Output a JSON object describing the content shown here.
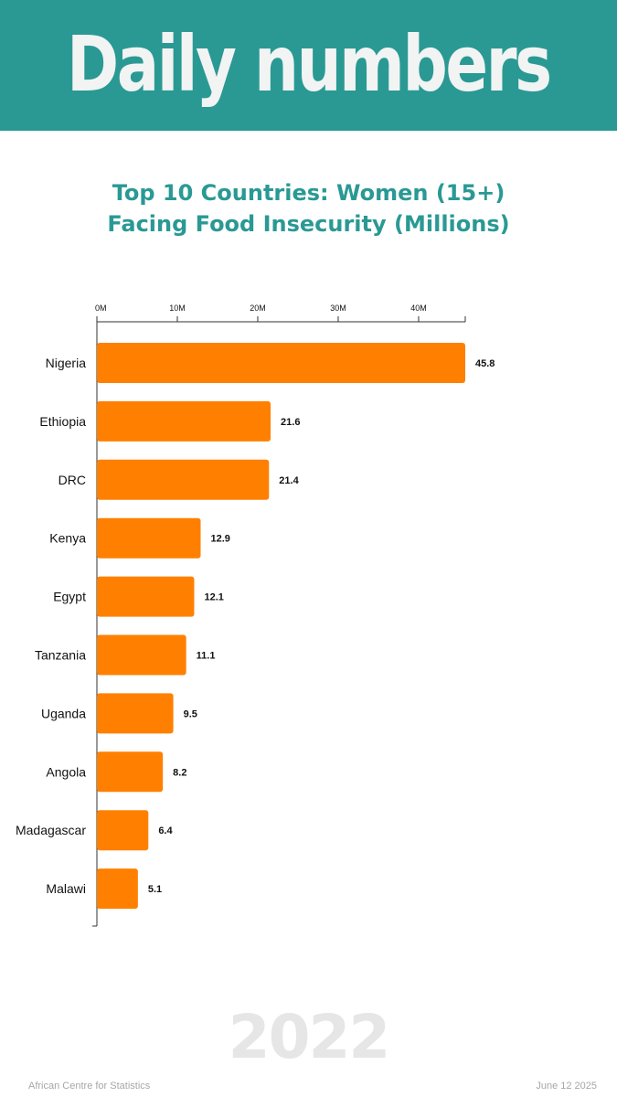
{
  "header": {
    "title": "Daily numbers"
  },
  "chart_data": {
    "type": "bar",
    "orientation": "horizontal",
    "title_lines": [
      "Top 10 Countries: Women (15+)",
      "Facing Food Insecurity (Millions)"
    ],
    "categories": [
      "Nigeria",
      "Ethiopia",
      "DRC",
      "Kenya",
      "Egypt",
      "Tanzania",
      "Uganda",
      "Angola",
      "Madagascar",
      "Malawi"
    ],
    "values": [
      45.8,
      21.6,
      21.4,
      12.9,
      12.1,
      11.1,
      9.5,
      8.2,
      6.4,
      5.1
    ],
    "value_labels": [
      "45.8",
      "21.6",
      "21.4",
      "12.9",
      "12.1",
      "11.1",
      "9.5",
      "8.2",
      "6.4",
      "5.1"
    ],
    "x_ticks": [
      0,
      10,
      20,
      30,
      40
    ],
    "x_tick_labels": [
      "0M",
      "10M",
      "20M",
      "30M",
      "40M"
    ],
    "xlim": [
      0,
      45.8
    ],
    "axis_position": "top",
    "grid": false,
    "bar_color": "#ff8000"
  },
  "year_label": "2022",
  "footer": {
    "source": "African Centre for Statistics",
    "date": "June 12 2025"
  }
}
